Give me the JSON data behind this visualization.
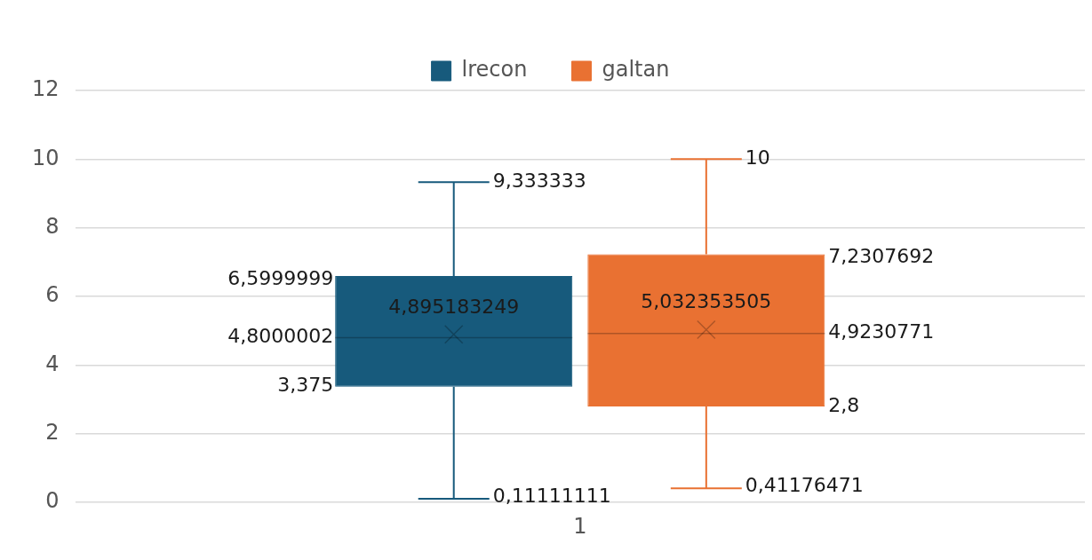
{
  "chart_data": {
    "type": "box",
    "categories": [
      "1"
    ],
    "series": [
      {
        "name": "lrecon",
        "color": "#175a7c",
        "boxes": [
          {
            "low": 0.11111111,
            "q1": 3.375,
            "median": 4.8000002,
            "q3": 6.5999999,
            "high": 9.333333,
            "mean": 4.895183249
          }
        ]
      },
      {
        "name": "galtan",
        "color": "#e97132",
        "boxes": [
          {
            "low": 0.41176471,
            "q1": 2.8,
            "median": 4.9230771,
            "q3": 7.2307692,
            "high": 10,
            "mean": 5.032353505
          }
        ]
      }
    ],
    "annotations": [
      "6,5999999",
      "4,8000002",
      "3,375",
      "9,333333",
      "0,11111111",
      "4,895183249",
      "7,2307692",
      "4,9230771",
      "2,8",
      "10",
      "0,41176471",
      "5,032353505"
    ],
    "ylim": [
      0,
      12
    ],
    "yticks": [
      0,
      2,
      4,
      6,
      8,
      10,
      12
    ],
    "grid": "y",
    "legend": "top",
    "marker": "cross"
  }
}
